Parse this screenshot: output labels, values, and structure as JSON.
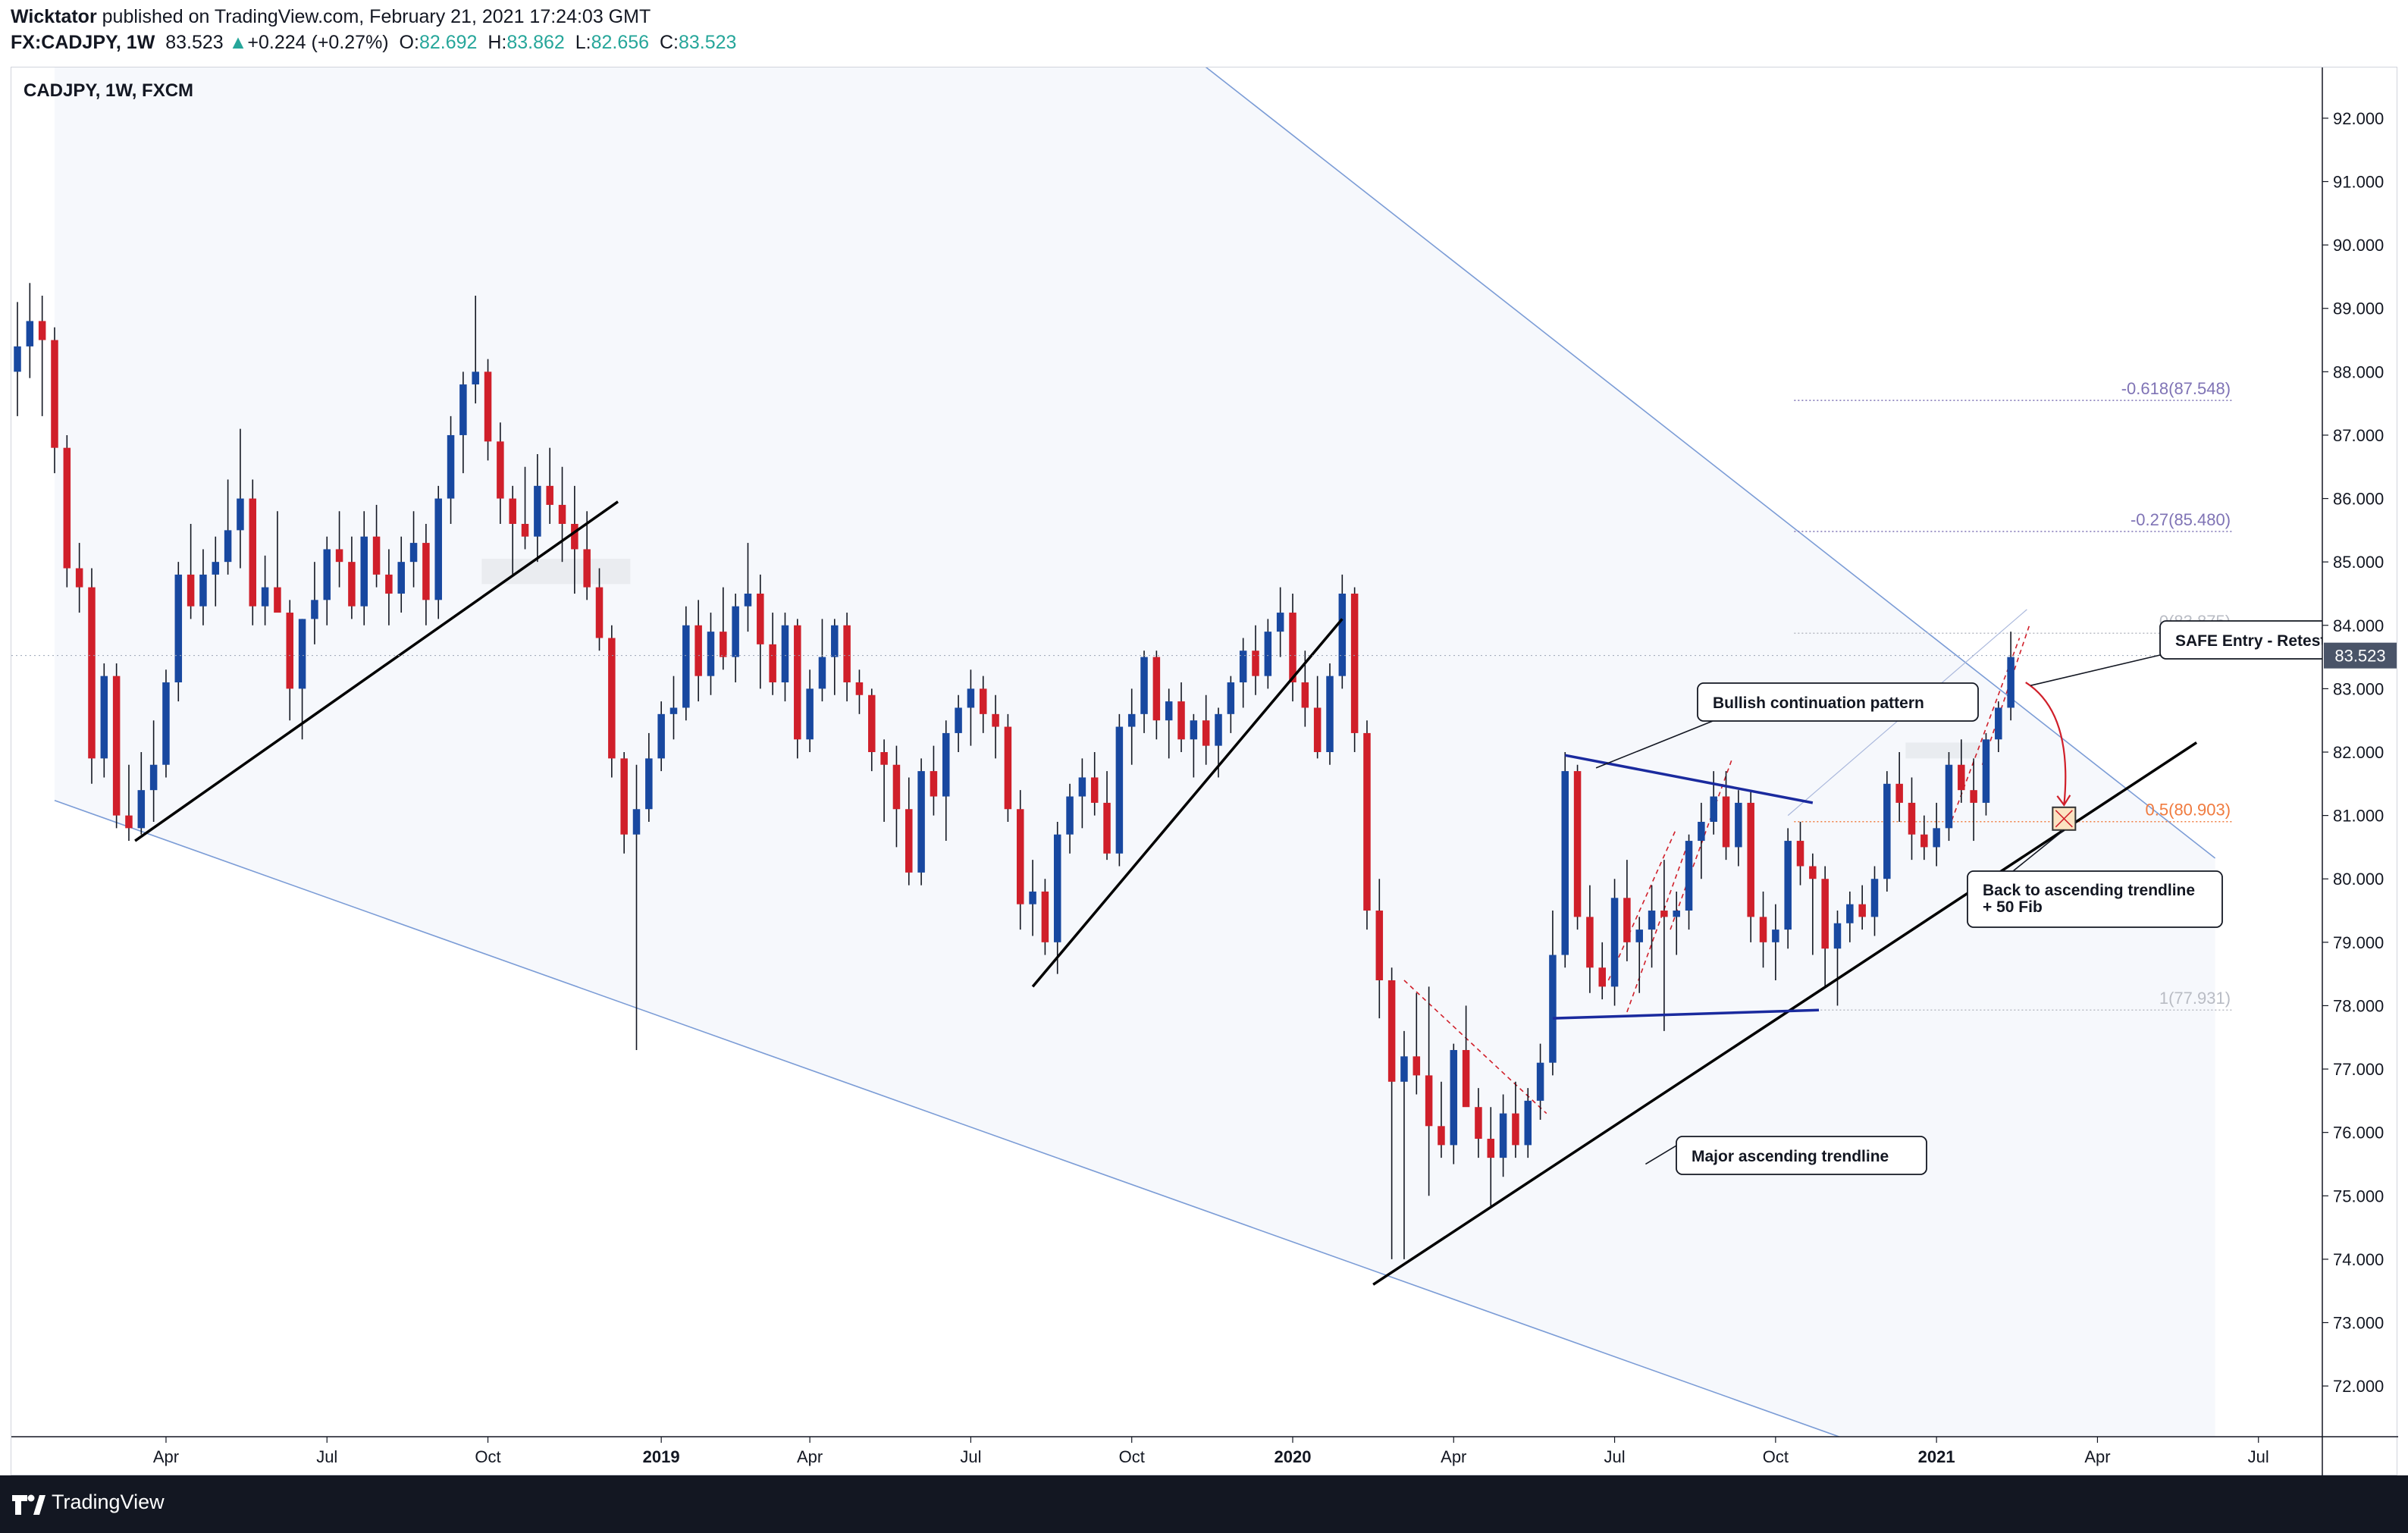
{
  "header": {
    "author": "Wicktator",
    "published": " published on TradingView.com, February 21, 2021 17:24:03 GMT",
    "symbol": "FX:CADJPY, 1W",
    "last": "83.523",
    "arrow": "▲",
    "change": "+0.224 (+0.27%)",
    "o_label": "O:",
    "o_value": "82.692",
    "h_label": "H:",
    "h_value": "83.862",
    "l_label": "L:",
    "l_value": "82.656",
    "c_label": "C:",
    "c_value": "83.523"
  },
  "chart_title": "CADJPY, 1W, FXCM",
  "footer": {
    "brand": "TradingView",
    "logo_icon": "tradingview-logo-icon"
  },
  "colors": {
    "up": "#1848a0",
    "down": "#d01f2a",
    "channel": "#7b9cd6",
    "fib": "#7f73b5",
    "fib_half": "#f07b3f",
    "pattern": "#1a2a9e"
  },
  "chart_data": {
    "type": "candlestick",
    "ylim": [
      71.2,
      92.8
    ],
    "y_ticks": [
      "72.000",
      "73.000",
      "74.000",
      "75.000",
      "76.000",
      "77.000",
      "78.000",
      "79.000",
      "80.000",
      "81.000",
      "82.000",
      "83.000",
      "84.000",
      "85.000",
      "86.000",
      "87.000",
      "88.000",
      "89.000",
      "90.000",
      "91.000",
      "92.000"
    ],
    "x_ticks": [
      "Apr",
      "Jul",
      "Oct",
      "2019",
      "Apr",
      "Jul",
      "Oct",
      "2020",
      "Apr",
      "Jul",
      "Oct",
      "2021",
      "Apr",
      "Jul"
    ],
    "x_tick_weeks": [
      12,
      25,
      38,
      52,
      64,
      77,
      90,
      103,
      116,
      129,
      142,
      155,
      168,
      181
    ],
    "first_week": "2018-01-01",
    "last_price": "83.523",
    "candles": [
      [
        0,
        88.0,
        89.1,
        87.3,
        88.4
      ],
      [
        1,
        88.4,
        89.4,
        87.9,
        88.8
      ],
      [
        2,
        88.8,
        89.2,
        87.3,
        88.5
      ],
      [
        3,
        88.5,
        88.7,
        86.4,
        86.8
      ],
      [
        4,
        86.8,
        87.0,
        84.6,
        84.9
      ],
      [
        5,
        84.9,
        85.3,
        84.2,
        84.6
      ],
      [
        6,
        84.6,
        84.9,
        81.5,
        81.9
      ],
      [
        7,
        81.9,
        83.4,
        81.6,
        83.2
      ],
      [
        8,
        83.2,
        83.4,
        80.8,
        81.0
      ],
      [
        9,
        81.0,
        81.8,
        80.6,
        80.8
      ],
      [
        10,
        80.8,
        82.0,
        80.7,
        81.4
      ],
      [
        11,
        81.4,
        82.5,
        80.9,
        81.8
      ],
      [
        12,
        81.8,
        83.3,
        81.6,
        83.1
      ],
      [
        13,
        83.1,
        85.0,
        82.8,
        84.8
      ],
      [
        14,
        84.8,
        85.6,
        84.1,
        84.3
      ],
      [
        15,
        84.3,
        85.2,
        84.0,
        84.8
      ],
      [
        16,
        84.8,
        85.4,
        84.3,
        85.0
      ],
      [
        17,
        85.0,
        86.3,
        84.8,
        85.5
      ],
      [
        18,
        85.5,
        87.1,
        84.9,
        86.0
      ],
      [
        19,
        86.0,
        86.3,
        84.0,
        84.3
      ],
      [
        20,
        84.3,
        85.1,
        84.0,
        84.6
      ],
      [
        21,
        84.6,
        85.8,
        84.2,
        84.2
      ],
      [
        22,
        84.2,
        84.4,
        82.5,
        83.0
      ],
      [
        23,
        83.0,
        84.1,
        82.2,
        84.1
      ],
      [
        24,
        84.1,
        85.0,
        83.7,
        84.4
      ],
      [
        25,
        84.4,
        85.4,
        84.0,
        85.2
      ],
      [
        26,
        85.2,
        85.8,
        84.6,
        85.0
      ],
      [
        27,
        85.0,
        85.4,
        84.1,
        84.3
      ],
      [
        28,
        84.3,
        85.8,
        84.0,
        85.4
      ],
      [
        29,
        85.4,
        85.9,
        84.6,
        84.8
      ],
      [
        30,
        84.8,
        85.2,
        84.0,
        84.5
      ],
      [
        31,
        84.5,
        85.4,
        84.2,
        85.0
      ],
      [
        32,
        85.0,
        85.8,
        84.6,
        85.3
      ],
      [
        33,
        85.3,
        85.6,
        84.0,
        84.4
      ],
      [
        34,
        84.4,
        86.2,
        84.1,
        86.0
      ],
      [
        35,
        86.0,
        87.3,
        85.6,
        87.0
      ],
      [
        36,
        87.0,
        88.0,
        86.4,
        87.8
      ],
      [
        37,
        87.8,
        89.2,
        87.5,
        88.0
      ],
      [
        38,
        88.0,
        88.2,
        86.6,
        86.9
      ],
      [
        39,
        86.9,
        87.2,
        85.6,
        86.0
      ],
      [
        40,
        86.0,
        86.2,
        84.8,
        85.6
      ],
      [
        41,
        85.6,
        86.5,
        85.2,
        85.4
      ],
      [
        42,
        85.4,
        86.7,
        85.0,
        86.2
      ],
      [
        43,
        86.2,
        86.8,
        85.6,
        85.9
      ],
      [
        44,
        85.9,
        86.5,
        85.0,
        85.6
      ],
      [
        45,
        85.6,
        86.2,
        84.5,
        85.2
      ],
      [
        46,
        85.2,
        85.8,
        84.4,
        84.6
      ],
      [
        47,
        84.6,
        84.9,
        83.6,
        83.8
      ],
      [
        48,
        83.8,
        84.0,
        81.6,
        81.9
      ],
      [
        49,
        81.9,
        82.0,
        80.4,
        80.7
      ],
      [
        50,
        80.7,
        81.8,
        77.3,
        81.1
      ],
      [
        51,
        81.1,
        82.3,
        80.9,
        81.9
      ],
      [
        52,
        81.9,
        82.8,
        81.7,
        82.6
      ],
      [
        53,
        82.6,
        83.2,
        82.2,
        82.7
      ],
      [
        54,
        82.7,
        84.3,
        82.5,
        84.0
      ],
      [
        55,
        84.0,
        84.4,
        82.8,
        83.2
      ],
      [
        56,
        83.2,
        84.2,
        82.9,
        83.9
      ],
      [
        57,
        83.9,
        84.6,
        83.3,
        83.5
      ],
      [
        58,
        83.5,
        84.5,
        83.1,
        84.3
      ],
      [
        59,
        84.3,
        85.3,
        83.9,
        84.5
      ],
      [
        60,
        84.5,
        84.8,
        83.0,
        83.7
      ],
      [
        61,
        83.7,
        84.2,
        82.9,
        83.1
      ],
      [
        62,
        83.1,
        84.2,
        82.8,
        84.0
      ],
      [
        63,
        84.0,
        84.1,
        81.9,
        82.2
      ],
      [
        64,
        82.2,
        83.3,
        82.0,
        83.0
      ],
      [
        65,
        83.0,
        84.1,
        82.8,
        83.5
      ],
      [
        66,
        83.5,
        84.1,
        82.9,
        84.0
      ],
      [
        67,
        84.0,
        84.2,
        82.8,
        83.1
      ],
      [
        68,
        83.1,
        83.3,
        82.6,
        82.9
      ],
      [
        69,
        82.9,
        83.0,
        81.7,
        82.0
      ],
      [
        70,
        82.0,
        82.2,
        80.9,
        81.8
      ],
      [
        71,
        81.8,
        82.1,
        80.5,
        81.1
      ],
      [
        72,
        81.1,
        81.6,
        79.9,
        80.1
      ],
      [
        73,
        80.1,
        81.9,
        79.9,
        81.7
      ],
      [
        74,
        81.7,
        82.1,
        81.0,
        81.3
      ],
      [
        75,
        81.3,
        82.5,
        80.6,
        82.3
      ],
      [
        76,
        82.3,
        82.9,
        82.0,
        82.7
      ],
      [
        77,
        82.7,
        83.3,
        82.1,
        83.0
      ],
      [
        78,
        83.0,
        83.2,
        82.3,
        82.6
      ],
      [
        79,
        82.6,
        82.9,
        81.9,
        82.4
      ],
      [
        80,
        82.4,
        82.6,
        80.9,
        81.1
      ],
      [
        81,
        81.1,
        81.4,
        79.2,
        79.6
      ],
      [
        82,
        79.6,
        80.3,
        79.1,
        79.8
      ],
      [
        83,
        79.8,
        80.0,
        78.8,
        79.0
      ],
      [
        84,
        79.0,
        80.9,
        78.5,
        80.7
      ],
      [
        85,
        80.7,
        81.5,
        80.4,
        81.3
      ],
      [
        86,
        81.3,
        81.9,
        80.8,
        81.6
      ],
      [
        87,
        81.6,
        82.0,
        81.0,
        81.2
      ],
      [
        88,
        81.2,
        81.7,
        80.3,
        80.4
      ],
      [
        89,
        80.4,
        82.6,
        80.2,
        82.4
      ],
      [
        90,
        82.4,
        83.0,
        81.8,
        82.6
      ],
      [
        91,
        82.6,
        83.6,
        82.3,
        83.5
      ],
      [
        92,
        83.5,
        83.6,
        82.2,
        82.5
      ],
      [
        93,
        82.5,
        83.0,
        81.9,
        82.8
      ],
      [
        94,
        82.8,
        83.1,
        82.0,
        82.2
      ],
      [
        95,
        82.2,
        82.6,
        81.6,
        82.5
      ],
      [
        96,
        82.5,
        82.9,
        81.8,
        82.1
      ],
      [
        97,
        82.1,
        82.7,
        81.6,
        82.6
      ],
      [
        98,
        82.6,
        83.2,
        82.3,
        83.1
      ],
      [
        99,
        83.1,
        83.8,
        82.7,
        83.6
      ],
      [
        100,
        83.6,
        84.0,
        82.9,
        83.2
      ],
      [
        101,
        83.2,
        84.1,
        83.0,
        83.9
      ],
      [
        102,
        83.9,
        84.6,
        83.5,
        84.2
      ],
      [
        103,
        84.2,
        84.5,
        82.8,
        83.1
      ],
      [
        104,
        83.1,
        83.6,
        82.4,
        82.7
      ],
      [
        105,
        82.7,
        83.2,
        81.9,
        82.0
      ],
      [
        106,
        82.0,
        83.4,
        81.8,
        83.2
      ],
      [
        107,
        83.2,
        84.8,
        83.0,
        84.5
      ],
      [
        108,
        84.5,
        84.6,
        82.0,
        82.3
      ],
      [
        109,
        82.3,
        82.5,
        79.2,
        79.5
      ],
      [
        110,
        79.5,
        80.0,
        77.8,
        78.4
      ],
      [
        111,
        78.4,
        78.6,
        74.0,
        76.8
      ],
      [
        112,
        76.8,
        77.6,
        74.0,
        77.2
      ],
      [
        113,
        77.2,
        78.2,
        76.6,
        76.9
      ],
      [
        114,
        76.9,
        78.3,
        75.0,
        76.1
      ],
      [
        115,
        76.1,
        76.8,
        75.6,
        75.8
      ],
      [
        116,
        75.8,
        77.4,
        75.5,
        77.3
      ],
      [
        117,
        77.3,
        78.0,
        76.6,
        76.4
      ],
      [
        118,
        76.4,
        76.7,
        75.6,
        75.9
      ],
      [
        119,
        75.9,
        76.4,
        74.8,
        75.6
      ],
      [
        120,
        75.6,
        76.6,
        75.3,
        76.3
      ],
      [
        121,
        76.3,
        76.8,
        75.6,
        75.8
      ],
      [
        122,
        75.8,
        76.7,
        75.6,
        76.5
      ],
      [
        123,
        76.5,
        77.4,
        76.2,
        77.1
      ],
      [
        124,
        77.1,
        79.5,
        76.9,
        78.8
      ],
      [
        125,
        78.8,
        82.0,
        78.6,
        81.7
      ],
      [
        126,
        81.7,
        81.8,
        79.2,
        79.4
      ],
      [
        127,
        79.4,
        79.9,
        78.2,
        78.6
      ],
      [
        128,
        78.6,
        79.0,
        78.1,
        78.3
      ],
      [
        129,
        78.3,
        80.0,
        78.0,
        79.7
      ],
      [
        130,
        79.7,
        80.3,
        78.7,
        79.0
      ],
      [
        131,
        79.0,
        79.4,
        78.2,
        79.2
      ],
      [
        132,
        79.2,
        79.9,
        78.6,
        79.5
      ],
      [
        133,
        79.5,
        80.3,
        77.6,
        79.4
      ],
      [
        134,
        79.4,
        79.8,
        78.8,
        79.5
      ],
      [
        135,
        79.5,
        80.7,
        79.2,
        80.6
      ],
      [
        136,
        80.6,
        81.2,
        80.0,
        80.9
      ],
      [
        137,
        80.9,
        81.7,
        80.7,
        81.3
      ],
      [
        138,
        81.3,
        81.7,
        80.3,
        80.5
      ],
      [
        139,
        80.5,
        81.4,
        80.2,
        81.2
      ],
      [
        140,
        81.2,
        81.4,
        79.0,
        79.4
      ],
      [
        141,
        79.4,
        79.8,
        78.6,
        79.0
      ],
      [
        142,
        79.0,
        79.6,
        78.4,
        79.2
      ],
      [
        143,
        79.2,
        80.8,
        78.9,
        80.6
      ],
      [
        144,
        80.6,
        80.9,
        79.9,
        80.2
      ],
      [
        145,
        80.2,
        80.4,
        78.8,
        80.0
      ],
      [
        146,
        80.0,
        80.2,
        78.3,
        78.9
      ],
      [
        147,
        78.9,
        79.5,
        78.0,
        79.3
      ],
      [
        148,
        79.3,
        79.8,
        79.0,
        79.6
      ],
      [
        149,
        79.6,
        79.9,
        79.2,
        79.4
      ],
      [
        150,
        79.4,
        80.2,
        79.1,
        80.0
      ],
      [
        151,
        80.0,
        81.7,
        79.8,
        81.5
      ],
      [
        152,
        81.5,
        82.0,
        80.9,
        81.2
      ],
      [
        153,
        81.2,
        81.6,
        80.3,
        80.7
      ],
      [
        154,
        80.7,
        81.0,
        80.3,
        80.5
      ],
      [
        155,
        80.5,
        81.2,
        80.2,
        80.8
      ],
      [
        156,
        80.8,
        82.0,
        80.6,
        81.8
      ],
      [
        157,
        81.8,
        82.2,
        81.2,
        81.4
      ],
      [
        158,
        81.4,
        81.9,
        80.6,
        81.2
      ],
      [
        159,
        81.2,
        82.3,
        81.0,
        82.2
      ],
      [
        160,
        82.2,
        82.8,
        82.0,
        82.7
      ],
      [
        161,
        82.7,
        83.9,
        82.5,
        83.5
      ]
    ],
    "fib_levels": [
      {
        "label": "-0.618(87.548)",
        "value": 87.548
      },
      {
        "label": "-0.27(85.480)",
        "value": 85.48
      },
      {
        "label": "0(83.875)",
        "value": 83.875
      },
      {
        "label": "0.5(80.903)",
        "value": 80.903
      },
      {
        "label": "1(77.931)",
        "value": 77.931
      }
    ],
    "annotations": {
      "bullish": "Bullish continuation pattern",
      "major": "Major ascending trendline",
      "back_1": "Back to ascending trendline",
      "back_2": "+ 50 Fib",
      "safe": "SAFE Entry - Retest"
    },
    "grid": false
  }
}
